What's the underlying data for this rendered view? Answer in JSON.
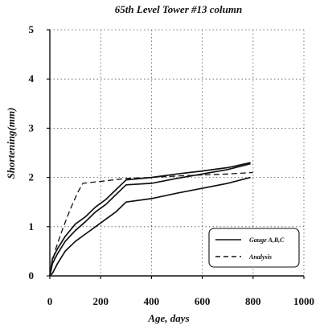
{
  "chart_data": {
    "type": "line",
    "title": "65th Level Tower #13 column",
    "xlabel": "Age, days",
    "ylabel": "Shortening(mm)",
    "xlim": [
      0,
      1000
    ],
    "ylim": [
      0,
      5
    ],
    "xticks": [
      0,
      200,
      400,
      600,
      800,
      1000
    ],
    "yticks": [
      0,
      1,
      2,
      3,
      4,
      5
    ],
    "grid": true,
    "legend_position": "bottom-right",
    "series": [
      {
        "name": "Gauge A,B,C",
        "style": "solid",
        "color": "#111111",
        "points": [
          [
            0,
            0
          ],
          [
            10,
            0.35
          ],
          [
            30,
            0.55
          ],
          [
            60,
            0.8
          ],
          [
            100,
            1.05
          ],
          [
            140,
            1.2
          ],
          [
            180,
            1.4
          ],
          [
            220,
            1.55
          ],
          [
            260,
            1.75
          ],
          [
            300,
            1.95
          ],
          [
            400,
            2.0
          ],
          [
            500,
            2.07
          ],
          [
            600,
            2.13
          ],
          [
            700,
            2.2
          ],
          [
            790,
            2.3
          ]
        ]
      },
      {
        "name": "",
        "style": "solid",
        "color": "#111111",
        "points": [
          [
            0,
            0
          ],
          [
            10,
            0.25
          ],
          [
            30,
            0.45
          ],
          [
            60,
            0.7
          ],
          [
            100,
            0.92
          ],
          [
            140,
            1.1
          ],
          [
            180,
            1.3
          ],
          [
            220,
            1.45
          ],
          [
            260,
            1.65
          ],
          [
            300,
            1.85
          ],
          [
            400,
            1.88
          ],
          [
            500,
            1.98
          ],
          [
            600,
            2.07
          ],
          [
            700,
            2.16
          ],
          [
            790,
            2.28
          ]
        ]
      },
      {
        "name": "",
        "style": "solid",
        "color": "#111111",
        "points": [
          [
            0,
            0
          ],
          [
            10,
            0.05
          ],
          [
            30,
            0.25
          ],
          [
            60,
            0.5
          ],
          [
            100,
            0.7
          ],
          [
            140,
            0.85
          ],
          [
            180,
            1.0
          ],
          [
            220,
            1.15
          ],
          [
            260,
            1.3
          ],
          [
            300,
            1.5
          ],
          [
            400,
            1.57
          ],
          [
            500,
            1.68
          ],
          [
            600,
            1.78
          ],
          [
            700,
            1.88
          ],
          [
            790,
            2.0
          ]
        ]
      },
      {
        "name": "Analysis",
        "style": "dashed",
        "color": "#111111",
        "points": [
          [
            0,
            0
          ],
          [
            20,
            0.5
          ],
          [
            50,
            0.95
          ],
          [
            80,
            1.35
          ],
          [
            110,
            1.7
          ],
          [
            130,
            1.88
          ],
          [
            200,
            1.92
          ],
          [
            300,
            1.98
          ],
          [
            400,
            2.0
          ],
          [
            500,
            2.03
          ],
          [
            600,
            2.05
          ],
          [
            700,
            2.07
          ],
          [
            800,
            2.1
          ]
        ]
      }
    ]
  }
}
